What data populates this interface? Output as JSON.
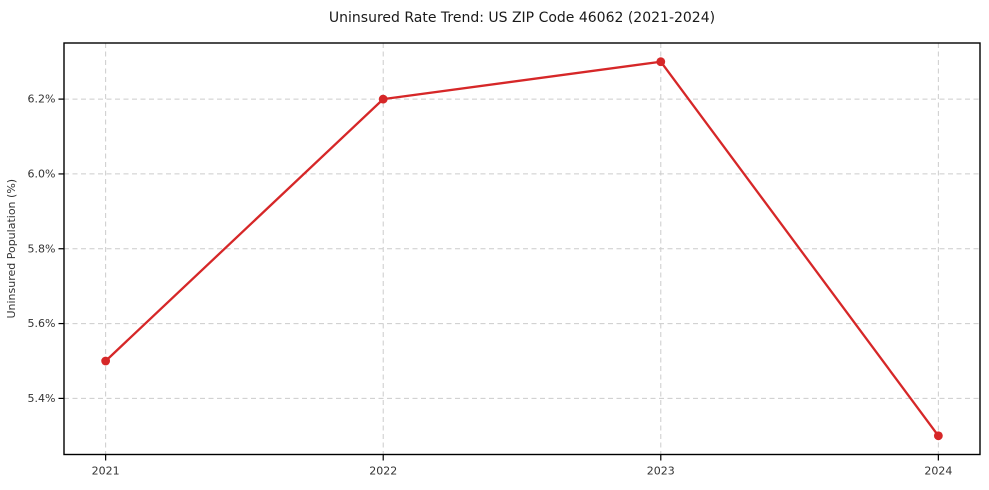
{
  "chart_data": {
    "type": "line",
    "title": "Uninsured Rate Trend: US ZIP Code 46062 (2021-2024)",
    "xlabel": "",
    "ylabel": "Uninsured Population (%)",
    "categories": [
      "2021",
      "2022",
      "2023",
      "2024"
    ],
    "x": [
      2021,
      2022,
      2023,
      2024
    ],
    "values": [
      5.5,
      6.2,
      6.3,
      5.3
    ],
    "unit": "%",
    "yticks": [
      5.4,
      5.6,
      5.8,
      6.0,
      6.2
    ],
    "ytick_labels": [
      "5.4%",
      "5.6%",
      "5.8%",
      "6.0%",
      "6.2%"
    ],
    "xlim": [
      2020.85,
      2024.15
    ],
    "ylim": [
      5.25,
      6.35
    ],
    "grid": {
      "visible": true,
      "style": "dashed",
      "axis": "both"
    },
    "legend_position": "none",
    "marker": "circle",
    "colors": {
      "line": "#d62728",
      "marker": "#d62728",
      "grid": "#cccccc",
      "spine": "#000000",
      "title_text": "#1a1a1a",
      "tick_text": "#333333"
    }
  }
}
